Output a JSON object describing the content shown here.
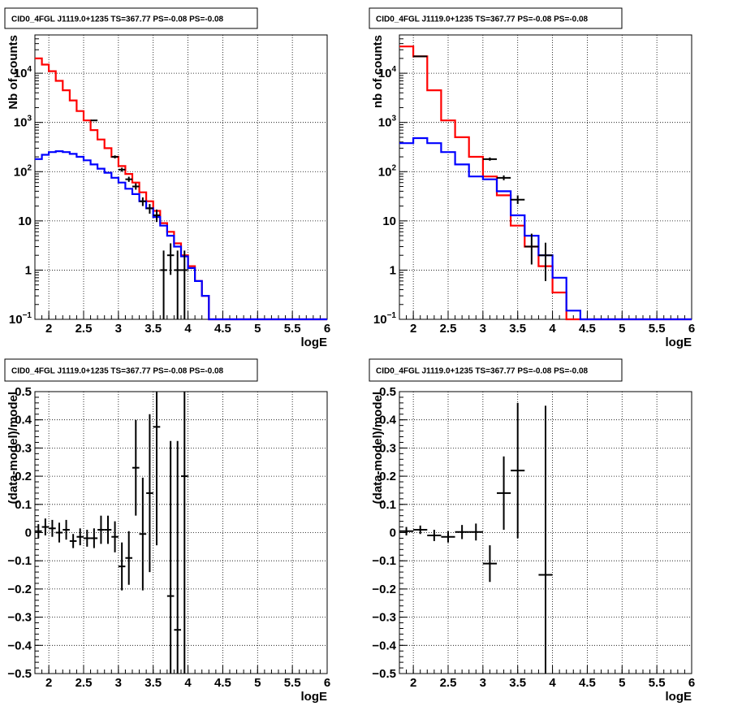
{
  "colors": {
    "data": "#000000",
    "total_model": "#ff0000",
    "source_model": "#0000ff",
    "grid": "#000000",
    "background": "#ffffff"
  },
  "chart_data": [
    {
      "type": "histogram-log",
      "title": "CID0_4FGL J1119.0+1235 TS=367.77 PS=-0.08 PS=-0.08",
      "xlabel": "logE",
      "ylabel": "Nb of counts",
      "xlim": [
        1.8,
        6.0
      ],
      "ylim": [
        0.1,
        60000
      ],
      "ylog": true,
      "grid": true,
      "x_ticks": [
        "2",
        "2.5",
        "3",
        "3.5",
        "4",
        "4.5",
        "5",
        "5.5",
        "6"
      ],
      "y_ticks": [
        {
          "v": 0.1,
          "base": "10",
          "exp": "−1"
        },
        {
          "v": 1,
          "label": "1"
        },
        {
          "v": 10,
          "label": "10"
        },
        {
          "v": 100,
          "base": "10",
          "exp": "2"
        },
        {
          "v": 1000,
          "base": "10",
          "exp": "3"
        },
        {
          "v": 10000,
          "base": "10",
          "exp": "4"
        }
      ],
      "bin_edges": [
        1.8,
        1.9,
        2.0,
        2.1,
        2.2,
        2.3,
        2.4,
        2.5,
        2.6,
        2.7,
        2.8,
        2.9,
        3.0,
        3.1,
        3.2,
        3.3,
        3.4,
        3.5,
        3.6,
        3.7,
        3.8,
        3.9,
        4.0,
        4.1,
        4.2,
        4.3,
        4.4,
        4.5,
        4.6,
        4.7,
        4.8,
        4.9,
        5.0,
        5.1,
        5.2,
        5.3,
        5.4,
        5.5,
        5.6,
        5.7,
        5.8,
        5.9,
        6.0
      ],
      "series": [
        {
          "kind": "step",
          "color": "#ff0000",
          "values": [
            20000,
            15000,
            11000,
            7000,
            4500,
            2800,
            1700,
            1100,
            700,
            450,
            300,
            200,
            130,
            90,
            60,
            38,
            25,
            16,
            9,
            6,
            3.5,
            2.0,
            1.2,
            0.6,
            0.3,
            0.1,
            0.1,
            0.1,
            0.1,
            0.1,
            0.1,
            0.1,
            0.1,
            0.1,
            0.1,
            0.1,
            0.1,
            0.1,
            0.1,
            0.1,
            0.1,
            0.1
          ]
        },
        {
          "kind": "step",
          "color": "#0000ff",
          "values": [
            180,
            220,
            250,
            260,
            250,
            230,
            200,
            170,
            140,
            115,
            95,
            75,
            60,
            45,
            35,
            25,
            18,
            12,
            8,
            5,
            3,
            1.9,
            1.1,
            0.6,
            0.3,
            0.1,
            0.1,
            0.1,
            0.1,
            0.1,
            0.1,
            0.1,
            0.1,
            0.1,
            0.1,
            0.1,
            0.1,
            0.1,
            0.1,
            0.1,
            0.1,
            0.1
          ]
        },
        {
          "kind": "points",
          "color": "#000000",
          "x": [
            2.65,
            2.95,
            3.05,
            3.15,
            3.25,
            3.35,
            3.45,
            3.55,
            3.65,
            3.75,
            3.85,
            3.95
          ],
          "xerr": 0.05,
          "y": [
            1100,
            200,
            110,
            70,
            50,
            25,
            18,
            13,
            1,
            2,
            1,
            1
          ],
          "ylo": [
            1070,
            186,
            100,
            62,
            43,
            20,
            14,
            9.5,
            0.1,
            0.8,
            0.1,
            0.1
          ],
          "yhi": [
            1133,
            214,
            120,
            79,
            58,
            30,
            22,
            17,
            2.5,
            3.5,
            2.5,
            2.5
          ]
        }
      ]
    },
    {
      "type": "histogram-log",
      "title": "CID0_4FGL J1119.0+1235 TS=367.77 PS=-0.08 PS=-0.08",
      "xlabel": "logE",
      "ylabel": "nb of counts",
      "xlim": [
        1.8,
        6.0
      ],
      "ylim": [
        0.1,
        60000
      ],
      "ylog": true,
      "grid": true,
      "x_ticks": [
        "2",
        "2.5",
        "3",
        "3.5",
        "4",
        "4.5",
        "5",
        "5.5",
        "6"
      ],
      "y_ticks": [
        {
          "v": 0.1,
          "base": "10",
          "exp": "−1"
        },
        {
          "v": 1,
          "label": "1"
        },
        {
          "v": 10,
          "label": "10"
        },
        {
          "v": 100,
          "base": "10",
          "exp": "2"
        },
        {
          "v": 1000,
          "base": "10",
          "exp": "3"
        },
        {
          "v": 10000,
          "base": "10",
          "exp": "4"
        }
      ],
      "bin_edges": [
        1.8,
        2.0,
        2.2,
        2.4,
        2.6,
        2.8,
        3.0,
        3.2,
        3.4,
        3.6,
        3.8,
        4.0,
        4.2,
        4.4,
        4.6,
        4.8,
        5.0,
        5.2,
        5.4,
        5.6,
        5.8,
        6.0
      ],
      "series": [
        {
          "kind": "step",
          "color": "#ff0000",
          "values": [
            35000,
            22000,
            4500,
            1100,
            500,
            200,
            80,
            33,
            8,
            3,
            1.2,
            0.35,
            0.1,
            0.1,
            0.1,
            0.1,
            0.1,
            0.1,
            0.1,
            0.1,
            0.1
          ]
        },
        {
          "kind": "step",
          "color": "#0000ff",
          "values": [
            380,
            480,
            380,
            250,
            140,
            80,
            70,
            40,
            13,
            5,
            2,
            0.7,
            0.15,
            0.1,
            0.1,
            0.1,
            0.1,
            0.1,
            0.1,
            0.1,
            0.1
          ]
        },
        {
          "kind": "points",
          "color": "#000000",
          "x": [
            2.1,
            3.1,
            3.3,
            3.5,
            3.7,
            3.9
          ],
          "xerr": 0.1,
          "y": [
            22000,
            180,
            75,
            27,
            3,
            2
          ],
          "ylo": [
            21850,
            167,
            67,
            22,
            1.3,
            0.6
          ],
          "yhi": [
            22150,
            194,
            84,
            33,
            5.5,
            3.6
          ]
        }
      ]
    },
    {
      "type": "residual",
      "title": "CID0_4FGL J1119.0+1235 TS=367.77 PS=-0.08 PS=-0.08",
      "xlabel": "logE",
      "ylabel": "(data-model)/model",
      "xlim": [
        1.8,
        6.0
      ],
      "ylim": [
        -0.5,
        0.5
      ],
      "ylog": false,
      "grid": true,
      "x_ticks": [
        "2",
        "2.5",
        "3",
        "3.5",
        "4",
        "4.5",
        "5",
        "5.5",
        "6"
      ],
      "y_ticks": [
        {
          "v": -0.5,
          "label": "−0.5"
        },
        {
          "v": -0.4,
          "label": "−0.4"
        },
        {
          "v": -0.3,
          "label": "−0.3"
        },
        {
          "v": -0.2,
          "label": "−0.2"
        },
        {
          "v": -0.1,
          "label": "−0.1"
        },
        {
          "v": 0,
          "label": "0"
        },
        {
          "v": 0.1,
          "label": "0.1"
        },
        {
          "v": 0.2,
          "label": "0.2"
        },
        {
          "v": 0.3,
          "label": "0.3"
        },
        {
          "v": 0.4,
          "label": "0.4"
        },
        {
          "v": 0.5,
          "label": "0.5"
        }
      ],
      "series": [
        {
          "kind": "points",
          "color": "#000000",
          "xerr": 0.05,
          "x": [
            1.85,
            1.95,
            2.05,
            2.15,
            2.25,
            2.35,
            2.45,
            2.55,
            2.65,
            2.75,
            2.85,
            2.95,
            3.05,
            3.15,
            3.25,
            3.35,
            3.45,
            3.55,
            3.75,
            3.85,
            3.95
          ],
          "y": [
            0.005,
            0.02,
            0.015,
            0.0,
            0.01,
            -0.03,
            -0.015,
            -0.02,
            -0.02,
            0.01,
            0.01,
            -0.015,
            -0.12,
            -0.09,
            0.23,
            -0.005,
            0.14,
            0.375,
            -0.225,
            -0.345,
            0.2
          ],
          "err": [
            0.025,
            0.03,
            0.03,
            0.035,
            0.035,
            0.025,
            0.03,
            0.03,
            0.035,
            0.05,
            0.05,
            0.055,
            0.085,
            0.095,
            0.17,
            0.2,
            0.28,
            0.42,
            0.55,
            0.67,
            0.7
          ]
        }
      ]
    },
    {
      "type": "residual",
      "title": "CID0_4FGL J1119.0+1235 TS=367.77 PS=-0.08 PS=-0.08",
      "xlabel": "logE",
      "ylabel": "(data-model)/model",
      "xlim": [
        1.8,
        6.0
      ],
      "ylim": [
        -0.5,
        0.5
      ],
      "ylog": false,
      "grid": true,
      "x_ticks": [
        "2",
        "2.5",
        "3",
        "3.5",
        "4",
        "4.5",
        "5",
        "5.5",
        "6"
      ],
      "y_ticks": [
        {
          "v": -0.5,
          "label": "−0.5"
        },
        {
          "v": -0.4,
          "label": "−0.4"
        },
        {
          "v": -0.3,
          "label": "−0.3"
        },
        {
          "v": -0.2,
          "label": "−0.2"
        },
        {
          "v": -0.1,
          "label": "−0.1"
        },
        {
          "v": 0,
          "label": "0"
        },
        {
          "v": 0.1,
          "label": "0.1"
        },
        {
          "v": 0.2,
          "label": "0.2"
        },
        {
          "v": 0.3,
          "label": "0.3"
        },
        {
          "v": 0.4,
          "label": "0.4"
        },
        {
          "v": 0.5,
          "label": "0.5"
        }
      ],
      "series": [
        {
          "kind": "points",
          "color": "#000000",
          "xerr": 0.1,
          "x": [
            1.9,
            2.1,
            2.3,
            2.5,
            2.7,
            2.9,
            3.1,
            3.3,
            3.5,
            3.9
          ],
          "y": [
            0.005,
            0.01,
            -0.01,
            -0.015,
            0.002,
            0.002,
            -0.11,
            0.14,
            0.22,
            -0.15
          ],
          "err": [
            0.015,
            0.015,
            0.02,
            0.02,
            0.025,
            0.03,
            0.065,
            0.13,
            0.24,
            0.6
          ]
        }
      ]
    }
  ]
}
